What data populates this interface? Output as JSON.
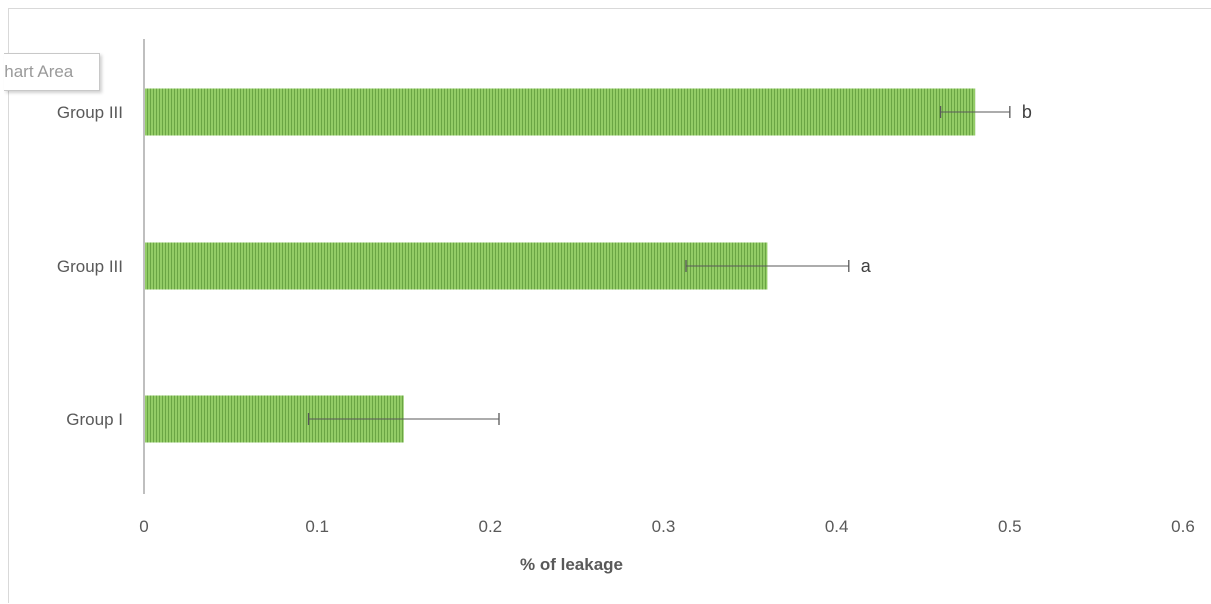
{
  "tooltip": {
    "text": "Chart Area"
  },
  "chart_data": {
    "type": "bar",
    "orientation": "horizontal",
    "categories": [
      "Group I",
      "Group III",
      "Group III"
    ],
    "values": [
      0.15,
      0.36,
      0.48
    ],
    "errors": [
      0.055,
      0.047,
      0.02
    ],
    "annotations": [
      "",
      "a",
      "b"
    ],
    "xlabel": "% of leakage",
    "ylabel": "",
    "title": "",
    "xlim": [
      0,
      0.6
    ],
    "xticks": [
      0,
      0.1,
      0.2,
      0.3,
      0.4,
      0.5,
      0.6
    ],
    "xtick_labels": [
      "0",
      "0.1",
      "0.2",
      "0.3",
      "0.4",
      "0.5",
      "0.6"
    ],
    "grid": false,
    "legend": "none",
    "colors": {
      "bar_fill": "#8cc860",
      "bar_stripe": "#6aa544",
      "axis": "#bfbfbf",
      "error_bar": "#595959",
      "text": "#595959"
    }
  }
}
